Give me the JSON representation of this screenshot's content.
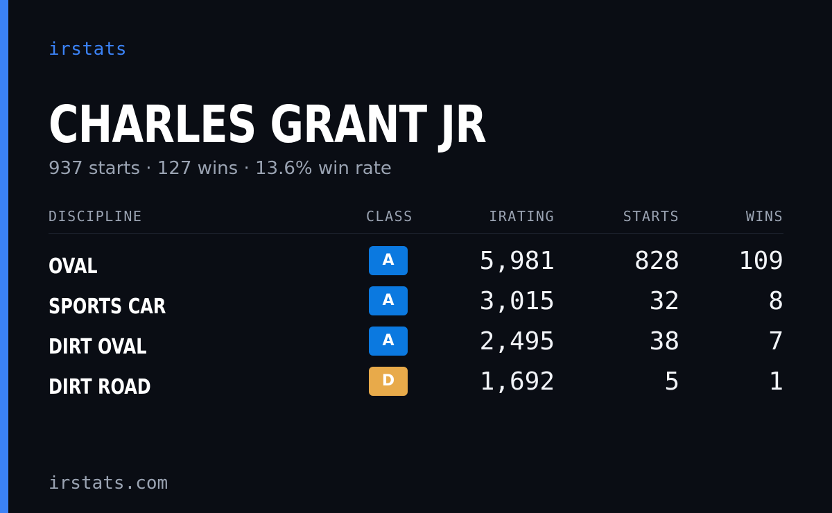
{
  "brand": "irstats",
  "driver": {
    "name": "CHARLES GRANT JR",
    "summary": "937 starts · 127 wins · 13.6% win rate"
  },
  "table": {
    "headers": {
      "discipline": "DISCIPLINE",
      "class": "CLASS",
      "irating": "IRATING",
      "starts": "STARTS",
      "wins": "WINS"
    },
    "rows": [
      {
        "discipline": "OVAL",
        "class": "A",
        "class_color": "#0b79e0",
        "irating": "5,981",
        "starts": "828",
        "wins": "109"
      },
      {
        "discipline": "SPORTS CAR",
        "class": "A",
        "class_color": "#0b79e0",
        "irating": "3,015",
        "starts": "32",
        "wins": "8"
      },
      {
        "discipline": "DIRT OVAL",
        "class": "A",
        "class_color": "#0b79e0",
        "irating": "2,495",
        "starts": "38",
        "wins": "7"
      },
      {
        "discipline": "DIRT ROAD",
        "class": "D",
        "class_color": "#e8aa4a",
        "irating": "1,692",
        "starts": "5",
        "wins": "1"
      }
    ]
  },
  "footer": "irstats.com",
  "colors": {
    "background": "#0a0d14",
    "accent": "#3b82f6",
    "muted_text": "#9aa3b2",
    "class_a": "#0b79e0",
    "class_d": "#e8aa4a"
  }
}
